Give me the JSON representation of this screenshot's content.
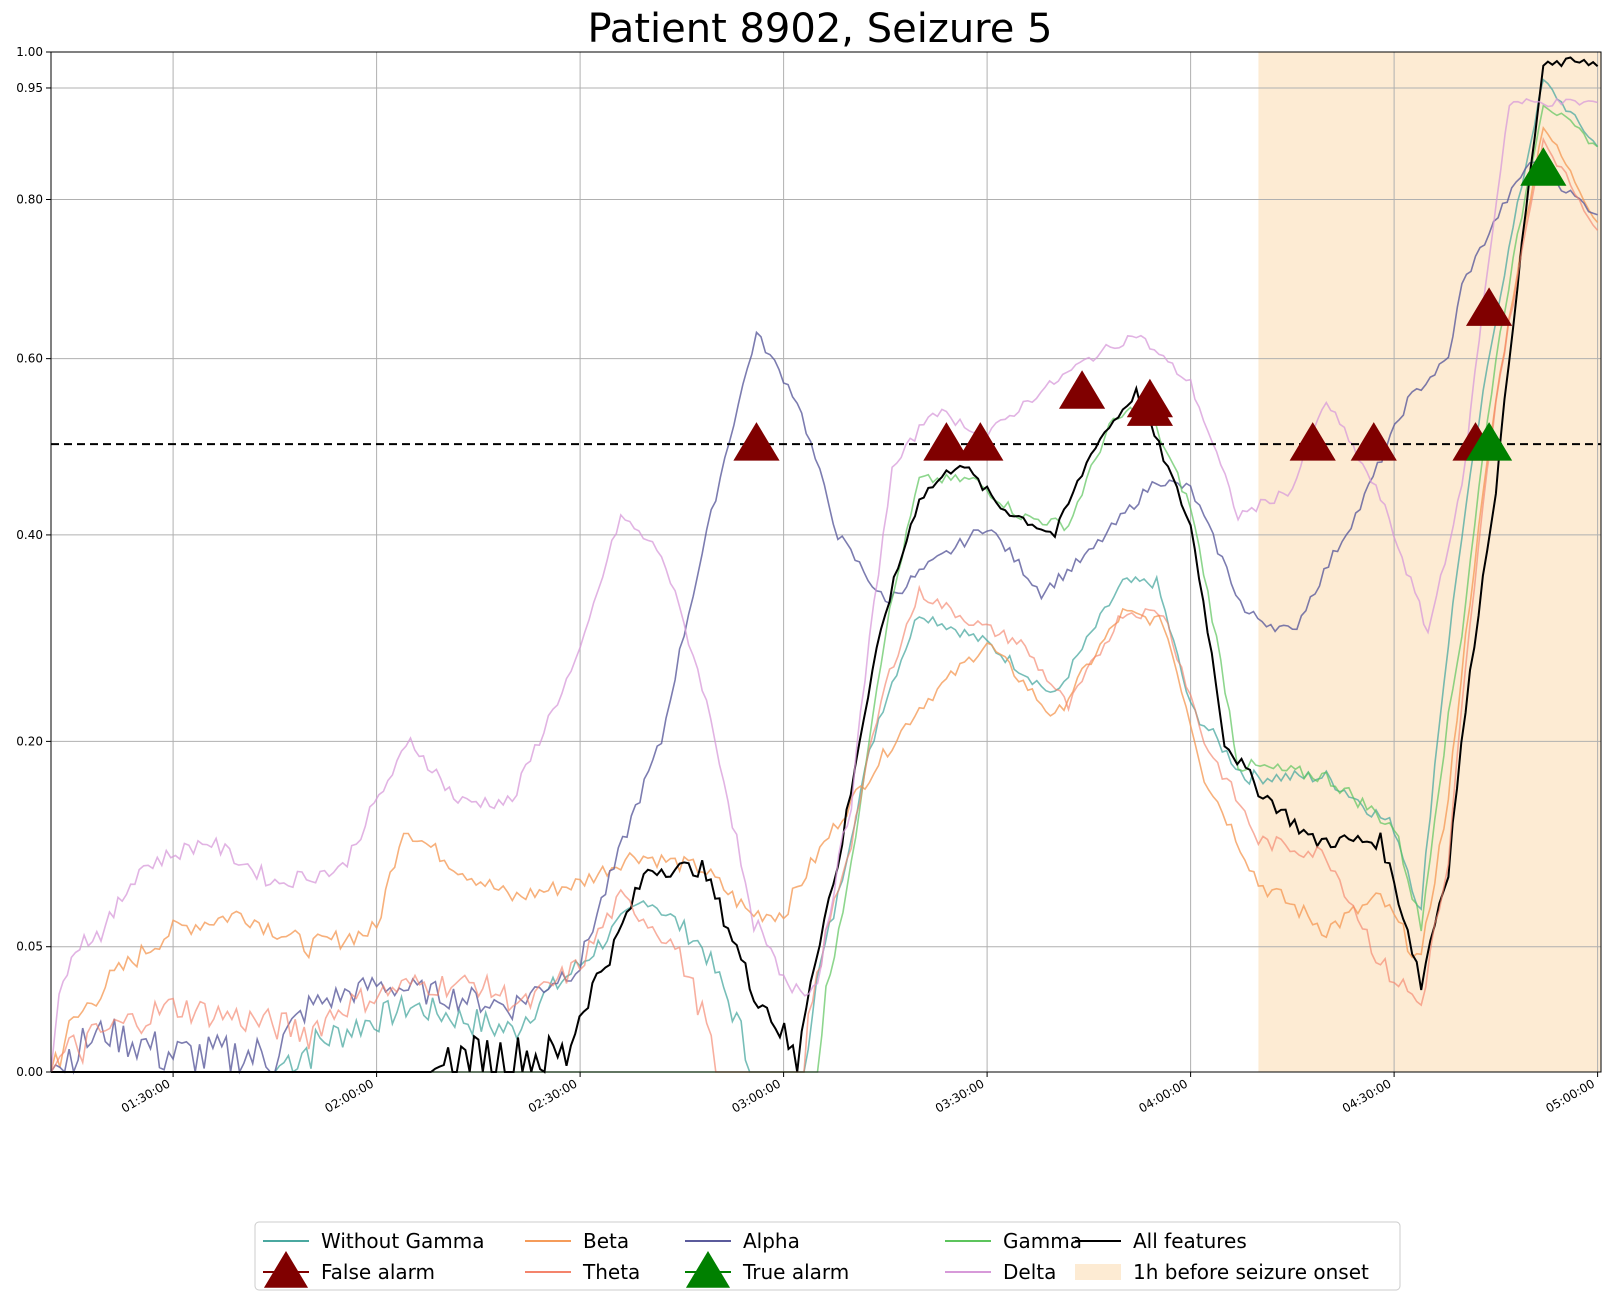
{
  "chart_data": {
    "type": "line",
    "title": "Patient 8902, Seizure 5",
    "xlabel": "",
    "ylabel": "",
    "x_range": [
      "01:12:00",
      "05:00:30"
    ],
    "ylim": [
      0,
      1
    ],
    "y_scale": "power 0.7 (ticks non-linearly spaced)",
    "y_ticks": [
      0.0,
      0.05,
      0.2,
      0.4,
      0.6,
      0.8,
      0.95,
      1.0
    ],
    "y_tick_labels": [
      "0.00",
      "0.05",
      "0.20",
      "0.40",
      "0.60",
      "0.80",
      "0.95",
      "1.00"
    ],
    "x_ticks": [
      "01:30:00",
      "02:00:00",
      "02:30:00",
      "03:00:00",
      "03:30:00",
      "04:00:00",
      "04:30:00",
      "05:00:00"
    ],
    "grid": true,
    "threshold": 0.5,
    "shaded_region": {
      "label": "1h before seizure onset",
      "x_start": "04:10:00",
      "x_end": "05:00:30",
      "color": "#fdebd3"
    },
    "legend": {
      "placement": "bottom-center, below plot",
      "columns": 5
    },
    "series": [
      {
        "name": "Without Gamma",
        "color": "#4aa8a0",
        "opacity": 0.75,
        "points": [
          [
            "01:12:00",
            0
          ],
          [
            "01:45:00",
            0
          ],
          [
            "01:55:00",
            0.01
          ],
          [
            "02:05:00",
            0.02
          ],
          [
            "02:20:00",
            0.01
          ],
          [
            "02:30:00",
            0.04
          ],
          [
            "02:40:00",
            0.08
          ],
          [
            "02:48:00",
            0.05
          ],
          [
            "02:55:00",
            0
          ],
          [
            "03:03:00",
            0
          ],
          [
            "03:08:00",
            0.08
          ],
          [
            "03:14:00",
            0.22
          ],
          [
            "03:20:00",
            0.32
          ],
          [
            "03:30:00",
            0.29
          ],
          [
            "03:40:00",
            0.24
          ],
          [
            "03:50:00",
            0.35
          ],
          [
            "03:55:00",
            0.35
          ],
          [
            "04:00:00",
            0.23
          ],
          [
            "04:08:00",
            0.17
          ],
          [
            "04:20:00",
            0.17
          ],
          [
            "04:30:00",
            0.13
          ],
          [
            "04:34:00",
            0.07
          ],
          [
            "04:40:00",
            0.4
          ],
          [
            "04:45:00",
            0.65
          ],
          [
            "04:52:00",
            0.96
          ],
          [
            "05:00:00",
            0.87
          ]
        ]
      },
      {
        "name": "Beta",
        "color": "#f59c5a",
        "opacity": 0.8,
        "points": [
          [
            "01:12:00",
            0
          ],
          [
            "01:20:00",
            0.03
          ],
          [
            "01:30:00",
            0.06
          ],
          [
            "01:40:00",
            0.07
          ],
          [
            "01:50:00",
            0.05
          ],
          [
            "02:00:00",
            0.06
          ],
          [
            "02:04:00",
            0.13
          ],
          [
            "02:12:00",
            0.1
          ],
          [
            "02:20:00",
            0.08
          ],
          [
            "02:30:00",
            0.09
          ],
          [
            "02:38:00",
            0.11
          ],
          [
            "02:48:00",
            0.1
          ],
          [
            "02:55:00",
            0.07
          ],
          [
            "03:00:00",
            0.07
          ],
          [
            "03:10:00",
            0.15
          ],
          [
            "03:20:00",
            0.23
          ],
          [
            "03:30:00",
            0.29
          ],
          [
            "03:40:00",
            0.22
          ],
          [
            "03:50:00",
            0.32
          ],
          [
            "03:56:00",
            0.31
          ],
          [
            "04:02:00",
            0.17
          ],
          [
            "04:10:00",
            0.09
          ],
          [
            "04:20:00",
            0.06
          ],
          [
            "04:28:00",
            0.08
          ],
          [
            "04:34:00",
            0.04
          ],
          [
            "04:38:00",
            0.15
          ],
          [
            "04:45:00",
            0.55
          ],
          [
            "04:52:00",
            0.9
          ],
          [
            "05:00:00",
            0.77
          ]
        ]
      },
      {
        "name": "Alpha",
        "color": "#5b5b9c",
        "opacity": 0.8,
        "points": [
          [
            "01:12:00",
            0
          ],
          [
            "01:20:00",
            0.01
          ],
          [
            "01:30:00",
            0.003
          ],
          [
            "01:45:00",
            0.003
          ],
          [
            "01:50:00",
            0.02
          ],
          [
            "02:00:00",
            0.03
          ],
          [
            "02:20:00",
            0.02
          ],
          [
            "02:30:00",
            0.04
          ],
          [
            "02:35:00",
            0.1
          ],
          [
            "02:42:00",
            0.2
          ],
          [
            "02:48:00",
            0.38
          ],
          [
            "02:56:00",
            0.63
          ],
          [
            "03:02:00",
            0.55
          ],
          [
            "03:08:00",
            0.4
          ],
          [
            "03:15:00",
            0.33
          ],
          [
            "03:20:00",
            0.36
          ],
          [
            "03:30:00",
            0.41
          ],
          [
            "03:38:00",
            0.34
          ],
          [
            "03:45:00",
            0.38
          ],
          [
            "03:55:00",
            0.46
          ],
          [
            "04:00:00",
            0.45
          ],
          [
            "04:08:00",
            0.32
          ],
          [
            "04:15:00",
            0.3
          ],
          [
            "04:25:00",
            0.43
          ],
          [
            "04:32:00",
            0.55
          ],
          [
            "04:38:00",
            0.6
          ],
          [
            "04:40:00",
            0.69
          ],
          [
            "04:46:00",
            0.79
          ],
          [
            "04:50:00",
            0.85
          ],
          [
            "05:00:00",
            0.78
          ]
        ]
      },
      {
        "name": "Gamma",
        "color": "#5cc45c",
        "opacity": 0.7,
        "points": [
          [
            "01:12:00",
            0
          ],
          [
            "03:05:00",
            0
          ],
          [
            "03:10:00",
            0.1
          ],
          [
            "03:15:00",
            0.3
          ],
          [
            "03:20:00",
            0.46
          ],
          [
            "03:28:00",
            0.46
          ],
          [
            "03:35:00",
            0.42
          ],
          [
            "03:42:00",
            0.41
          ],
          [
            "03:48:00",
            0.52
          ],
          [
            "03:53:00",
            0.55
          ],
          [
            "04:00:00",
            0.43
          ],
          [
            "04:07:00",
            0.18
          ],
          [
            "04:20:00",
            0.17
          ],
          [
            "04:30:00",
            0.13
          ],
          [
            "04:34:00",
            0.06
          ],
          [
            "04:40:00",
            0.3
          ],
          [
            "04:45:00",
            0.6
          ],
          [
            "04:52:00",
            0.93
          ],
          [
            "05:00:00",
            0.87
          ]
        ]
      },
      {
        "name": "All features",
        "color": "#000000",
        "opacity": 1,
        "points": [
          [
            "01:12:00",
            0
          ],
          [
            "02:08:00",
            0
          ],
          [
            "02:15:00",
            0.003
          ],
          [
            "02:28:00",
            0.003
          ],
          [
            "02:35:00",
            0.05
          ],
          [
            "02:40:00",
            0.1
          ],
          [
            "02:48:00",
            0.1
          ],
          [
            "02:55:00",
            0.03
          ],
          [
            "03:02:00",
            0
          ],
          [
            "03:08:00",
            0.1
          ],
          [
            "03:15:00",
            0.32
          ],
          [
            "03:20:00",
            0.44
          ],
          [
            "03:26:00",
            0.48
          ],
          [
            "03:32:00",
            0.43
          ],
          [
            "03:40:00",
            0.4
          ],
          [
            "03:46:00",
            0.5
          ],
          [
            "03:52:00",
            0.56
          ],
          [
            "04:00:00",
            0.41
          ],
          [
            "04:05:00",
            0.2
          ],
          [
            "04:10:00",
            0.16
          ],
          [
            "04:18:00",
            0.12
          ],
          [
            "04:28:00",
            0.12
          ],
          [
            "04:34:00",
            0.03
          ],
          [
            "04:38:00",
            0.1
          ],
          [
            "04:45:00",
            0.45
          ],
          [
            "04:52:00",
            0.98
          ],
          [
            "04:58:00",
            0.99
          ],
          [
            "05:00:00",
            0.98
          ]
        ]
      },
      {
        "name": "Theta",
        "color": "#f4846c",
        "opacity": 0.65,
        "points": [
          [
            "01:12:00",
            0
          ],
          [
            "01:20:00",
            0.01
          ],
          [
            "01:30:00",
            0.02
          ],
          [
            "01:50:00",
            0.01
          ],
          [
            "01:55:00",
            0.02
          ],
          [
            "02:05:00",
            0.03
          ],
          [
            "02:15:00",
            0.03
          ],
          [
            "02:22:00",
            0.02
          ],
          [
            "02:30:00",
            0.04
          ],
          [
            "02:36:00",
            0.08
          ],
          [
            "02:44:00",
            0.05
          ],
          [
            "02:50:00",
            0
          ],
          [
            "03:03:00",
            0
          ],
          [
            "03:10:00",
            0.12
          ],
          [
            "03:15:00",
            0.25
          ],
          [
            "03:20:00",
            0.34
          ],
          [
            "03:28:00",
            0.31
          ],
          [
            "03:35:00",
            0.29
          ],
          [
            "03:42:00",
            0.23
          ],
          [
            "03:50:00",
            0.32
          ],
          [
            "03:56:00",
            0.32
          ],
          [
            "04:02:00",
            0.2
          ],
          [
            "04:10:00",
            0.12
          ],
          [
            "04:20:00",
            0.11
          ],
          [
            "04:28:00",
            0.04
          ],
          [
            "04:34:00",
            0.02
          ],
          [
            "04:38:00",
            0.1
          ],
          [
            "04:45:00",
            0.55
          ],
          [
            "04:52:00",
            0.88
          ],
          [
            "05:00:00",
            0.76
          ]
        ]
      },
      {
        "name": "Delta",
        "color": "#d79ad9",
        "opacity": 0.75,
        "points": [
          [
            "01:12:00",
            0
          ],
          [
            "01:15:00",
            0.05
          ],
          [
            "01:20:00",
            0.06
          ],
          [
            "01:25:00",
            0.1
          ],
          [
            "01:35:00",
            0.12
          ],
          [
            "01:45:00",
            0.09
          ],
          [
            "01:55:00",
            0.1
          ],
          [
            "02:05:00",
            0.2
          ],
          [
            "02:12:00",
            0.15
          ],
          [
            "02:20:00",
            0.15
          ],
          [
            "02:30:00",
            0.28
          ],
          [
            "02:36:00",
            0.42
          ],
          [
            "02:42:00",
            0.38
          ],
          [
            "02:48:00",
            0.25
          ],
          [
            "02:55:00",
            0.07
          ],
          [
            "03:00:00",
            0.03
          ],
          [
            "03:05:00",
            0.03
          ],
          [
            "03:10:00",
            0.15
          ],
          [
            "03:16:00",
            0.47
          ],
          [
            "03:22:00",
            0.54
          ],
          [
            "03:30:00",
            0.51
          ],
          [
            "03:36:00",
            0.55
          ],
          [
            "03:45:00",
            0.6
          ],
          [
            "03:52:00",
            0.63
          ],
          [
            "04:00:00",
            0.57
          ],
          [
            "04:07:00",
            0.42
          ],
          [
            "04:15:00",
            0.45
          ],
          [
            "04:20:00",
            0.55
          ],
          [
            "04:28:00",
            0.44
          ],
          [
            "04:35:00",
            0.3
          ],
          [
            "04:40:00",
            0.45
          ],
          [
            "04:47:00",
            0.93
          ],
          [
            "04:52:00",
            0.93
          ],
          [
            "05:00:00",
            0.93
          ]
        ]
      }
    ],
    "markers": [
      {
        "label": "False alarm",
        "color": "#800000",
        "points": [
          [
            "02:56:00",
            0.5
          ],
          [
            "03:24:00",
            0.5
          ],
          [
            "03:29:00",
            0.5
          ],
          [
            "03:44:00",
            0.56
          ],
          [
            "03:54:00",
            0.55
          ],
          [
            "03:54:00",
            0.54
          ],
          [
            "04:18:00",
            0.5
          ],
          [
            "04:27:00",
            0.5
          ],
          [
            "04:42:00",
            0.5
          ],
          [
            "04:44:00",
            0.66
          ]
        ]
      },
      {
        "label": "True alarm",
        "color": "#008000",
        "points": [
          [
            "04:44:00",
            0.5
          ],
          [
            "04:52:00",
            0.84
          ]
        ]
      }
    ],
    "legend_entries": [
      {
        "label": "Without Gamma",
        "kind": "line",
        "color": "#4aa8a0"
      },
      {
        "label": "False alarm",
        "kind": "marker",
        "color": "#800000"
      },
      {
        "label": "Beta",
        "kind": "line",
        "color": "#f59c5a"
      },
      {
        "label": "Theta",
        "kind": "line",
        "color": "#f4846c"
      },
      {
        "label": "Alpha",
        "kind": "line",
        "color": "#5b5b9c"
      },
      {
        "label": "True alarm",
        "kind": "marker",
        "color": "#008000"
      },
      {
        "label": "Gamma",
        "kind": "line",
        "color": "#5cc45c"
      },
      {
        "label": "Delta",
        "kind": "line",
        "color": "#d79ad9"
      },
      {
        "label": "All features",
        "kind": "line",
        "color": "#000000"
      },
      {
        "label": "1h before seizure onset",
        "kind": "patch",
        "color": "#fdebd3"
      }
    ]
  }
}
